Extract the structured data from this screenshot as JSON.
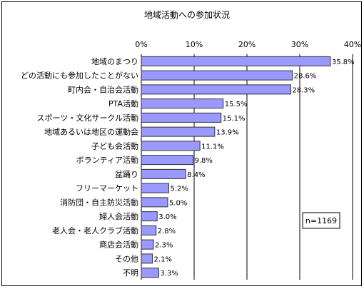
{
  "chart_data": {
    "type": "bar",
    "orientation": "horizontal",
    "title": "地域活動への参加状況",
    "xlim": [
      0,
      40
    ],
    "x_ticks": [
      "0%",
      "10%",
      "20%",
      "30%",
      "40%"
    ],
    "grid": true,
    "categories": [
      "地域のまつり",
      "どの活動にも参加したことがない",
      "町内会・自治会活動",
      "PTA活動",
      "スポーツ・文化サークル活動",
      "地域あるいは地区の運動会",
      "子ども会活動",
      "ボランティア活動",
      "盆踊り",
      "フリーマーケット",
      "消防団・自主防災活動",
      "婦人会活動",
      "老人会・老人クラブ活動",
      "商店会活動",
      "その他",
      "不明"
    ],
    "values": [
      35.8,
      28.6,
      28.3,
      15.5,
      15.1,
      13.9,
      11.1,
      9.8,
      8.4,
      5.2,
      5.0,
      3.0,
      2.8,
      2.3,
      2.1,
      3.3
    ],
    "value_labels": [
      "35.8%",
      "28.6%",
      "28.3%",
      "15.5%",
      "15.1%",
      "13.9%",
      "11.1%",
      "9.8%",
      "8.4%",
      "5.2%",
      "5.0%",
      "3.0%",
      "2.8%",
      "2.3%",
      "2.1%",
      "3.3%"
    ],
    "annotation": "n=1169",
    "bar_color": "#9999ff",
    "bar_border_color": "#333333"
  }
}
